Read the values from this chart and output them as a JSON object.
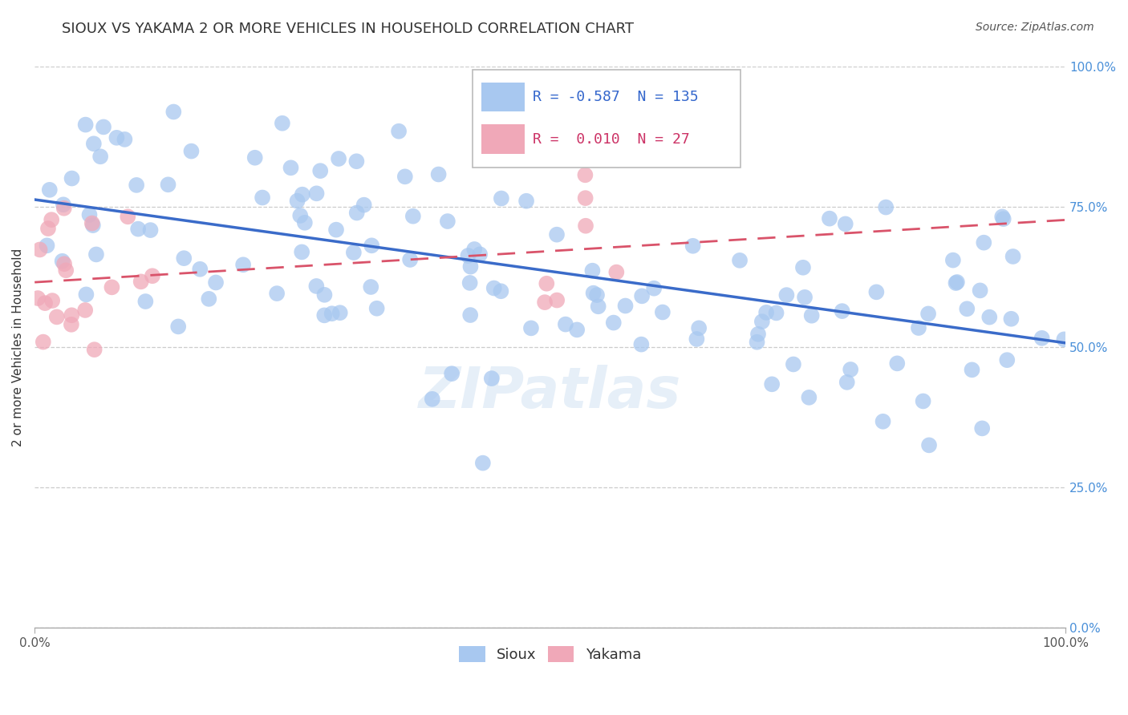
{
  "title": "SIOUX VS YAKAMA 2 OR MORE VEHICLES IN HOUSEHOLD CORRELATION CHART",
  "source": "Source: ZipAtlas.com",
  "ylabel": "2 or more Vehicles in Household",
  "xlim": [
    0,
    1
  ],
  "ylim": [
    0,
    1
  ],
  "ytick_labels": [
    "0.0%",
    "25.0%",
    "50.0%",
    "75.0%",
    "100.0%"
  ],
  "ytick_values": [
    0.0,
    0.25,
    0.5,
    0.75,
    1.0
  ],
  "sioux_R": -0.587,
  "sioux_N": 135,
  "yakama_R": 0.01,
  "yakama_N": 27,
  "sioux_color": "#a8c8f0",
  "yakama_color": "#f0a8b8",
  "sioux_line_color": "#3a6bc9",
  "yakama_line_color": "#d9536a",
  "watermark": "ZIPatlas",
  "title_fontsize": 13,
  "axis_label_fontsize": 11,
  "tick_fontsize": 11,
  "legend_fontsize": 13
}
